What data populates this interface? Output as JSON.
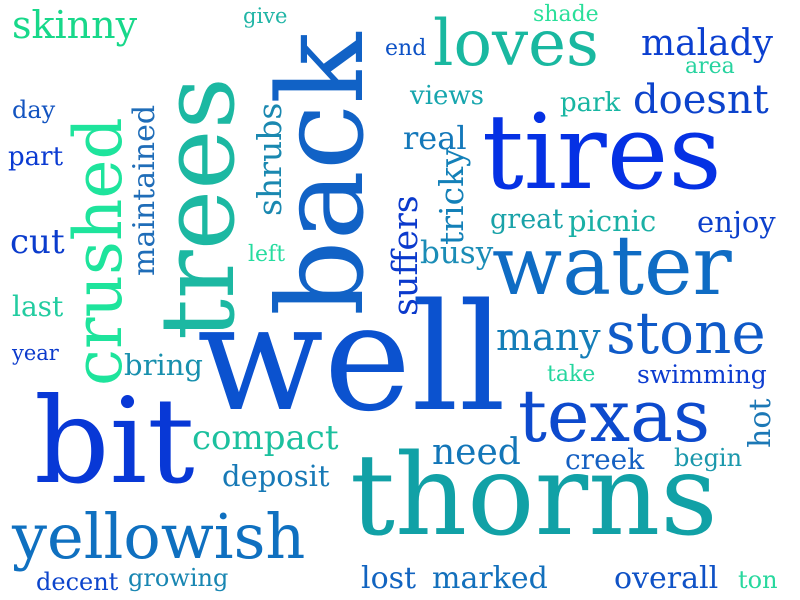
{
  "words": {
    "skinny": {
      "text": "skinny",
      "color": "#18d88a"
    },
    "give": {
      "text": "give",
      "color": "#21b5a6"
    },
    "shade": {
      "text": "shade",
      "color": "#2adf9a"
    },
    "end": {
      "text": "end",
      "color": "#0d52c6"
    },
    "loves": {
      "text": "loves",
      "color": "#19b8a0"
    },
    "malady": {
      "text": "malady",
      "color": "#0b3fd0"
    },
    "area": {
      "text": "area",
      "color": "#27d39f"
    },
    "day": {
      "text": "day",
      "color": "#1354c0"
    },
    "views": {
      "text": "views",
      "color": "#17a6ae"
    },
    "park": {
      "text": "park",
      "color": "#18b6a2"
    },
    "doesnt": {
      "text": "doesnt",
      "color": "#0c43cc"
    },
    "part": {
      "text": "part",
      "color": "#0b3bd2"
    },
    "real": {
      "text": "real",
      "color": "#1478ba"
    },
    "tires": {
      "text": "tires",
      "color": "#0531e4"
    },
    "cut": {
      "text": "cut",
      "color": "#0b3ccd"
    },
    "great": {
      "text": "great",
      "color": "#19a2a8"
    },
    "picnic": {
      "text": "picnic",
      "color": "#1ab0a5"
    },
    "enjoy": {
      "text": "enjoy",
      "color": "#0c40cc"
    },
    "left": {
      "text": "left",
      "color": "#26dc9f"
    },
    "busy": {
      "text": "busy",
      "color": "#1a8cb6"
    },
    "water": {
      "text": "water",
      "color": "#0f6cc4"
    },
    "last": {
      "text": "last",
      "color": "#22cca0"
    },
    "stone": {
      "text": "stone",
      "color": "#0f5ac8"
    },
    "year": {
      "text": "year",
      "color": "#0b3acc"
    },
    "many": {
      "text": "many",
      "color": "#157eb8"
    },
    "bring": {
      "text": "bring",
      "color": "#1890ae"
    },
    "well": {
      "text": "well",
      "color": "#0b52cf"
    },
    "take": {
      "text": "take",
      "color": "#25d69e"
    },
    "swimming": {
      "text": "swimming",
      "color": "#0c3cd0"
    },
    "texas": {
      "text": "texas",
      "color": "#0d4acd"
    },
    "bit": {
      "text": "bit",
      "color": "#0838d6"
    },
    "compact": {
      "text": "compact",
      "color": "#1cc09e"
    },
    "need": {
      "text": "need",
      "color": "#1376b8"
    },
    "creek": {
      "text": "creek",
      "color": "#1560c2"
    },
    "begin": {
      "text": "begin",
      "color": "#1b98ac"
    },
    "deposit": {
      "text": "deposit",
      "color": "#1779b6"
    },
    "thorns": {
      "text": "thorns",
      "color": "#11a1a6"
    },
    "yellowish": {
      "text": "yellowish",
      "color": "#0f70c0"
    },
    "decent": {
      "text": "decent",
      "color": "#0d45cc"
    },
    "growing": {
      "text": "growing",
      "color": "#1886b2"
    },
    "lost": {
      "text": "lost",
      "color": "#1264c0"
    },
    "marked": {
      "text": "marked",
      "color": "#1370bc"
    },
    "overall": {
      "text": "overall",
      "color": "#0f52c6"
    },
    "ton": {
      "text": "ton",
      "color": "#28d89e"
    },
    "trees": {
      "text": "trees",
      "color": "#1cb8a2"
    },
    "back": {
      "text": "back",
      "color": "#1162c6"
    },
    "crushed": {
      "text": "crushed",
      "color": "#1ee49c"
    },
    "shrubs": {
      "text": "shrubs",
      "color": "#1a88b0"
    },
    "maintained": {
      "text": "maintained",
      "color": "#1f6db8"
    },
    "suffers": {
      "text": "suffers",
      "color": "#0b3acc"
    },
    "tricky": {
      "text": "tricky",
      "color": "#1380b8"
    },
    "hot": {
      "text": "hot",
      "color": "#1c78b6"
    }
  }
}
